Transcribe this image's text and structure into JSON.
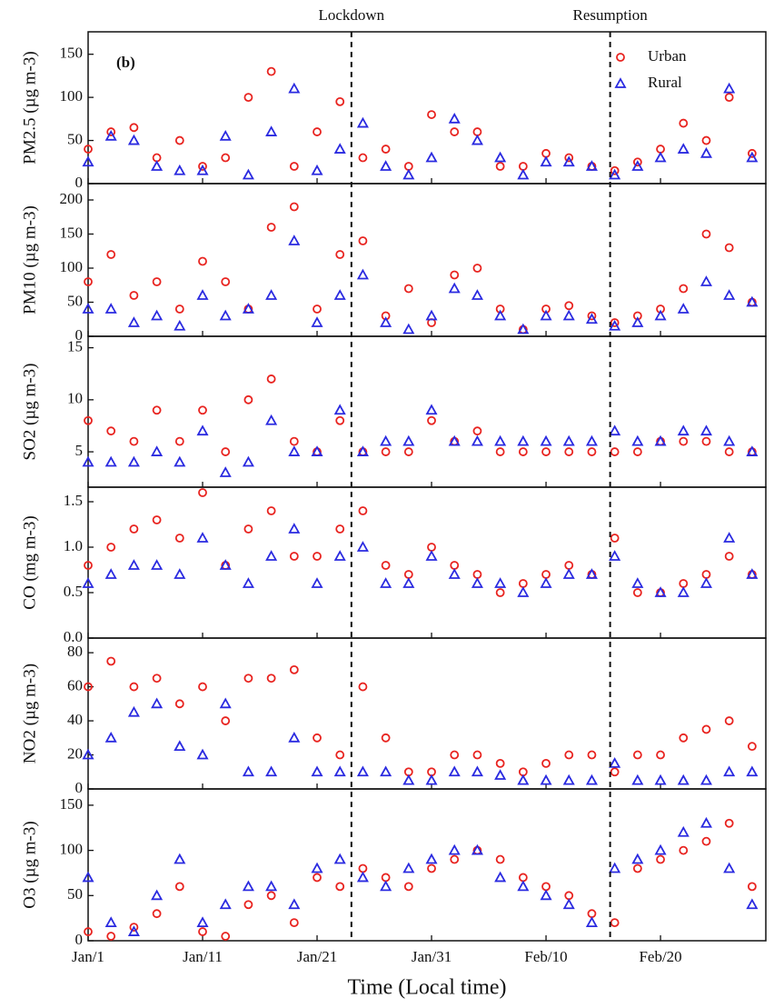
{
  "events": [
    {
      "label": "Lockdown",
      "x": 24
    },
    {
      "label": "Resumption",
      "x": 46.6
    }
  ],
  "chart_data": [
    {
      "type": "scatter",
      "ylabel": "PM2.5 (µg m-3)",
      "annotation": "(b)",
      "legend": "upper right",
      "x": [
        1,
        3,
        5,
        7,
        9,
        11,
        13,
        15,
        17,
        19,
        21,
        23,
        25,
        27,
        29,
        31,
        33,
        35,
        37,
        39,
        41,
        43,
        45,
        47,
        49,
        51,
        53,
        55,
        57,
        59
      ],
      "xlim": [
        1,
        60.2
      ],
      "ylim": [
        0,
        176
      ],
      "yticks": [
        0,
        50,
        100,
        150
      ],
      "series": [
        {
          "name": "Urban",
          "color": "#e8231f",
          "values": [
            40,
            60,
            65,
            30,
            50,
            20,
            30,
            100,
            130,
            20,
            60,
            95,
            30,
            40,
            20,
            80,
            60,
            60,
            20,
            20,
            35,
            30,
            20,
            15,
            25,
            40,
            70,
            50,
            100,
            35
          ]
        },
        {
          "name": "Rural",
          "color": "#2a2ae0",
          "values": [
            25,
            55,
            50,
            20,
            15,
            15,
            55,
            10,
            60,
            110,
            15,
            40,
            70,
            20,
            10,
            30,
            75,
            50,
            30,
            10,
            25,
            25,
            20,
            10,
            20,
            30,
            40,
            35,
            110,
            30
          ]
        }
      ]
    },
    {
      "type": "scatter",
      "ylabel": "PM10 (µg m-3)",
      "x": [
        1,
        3,
        5,
        7,
        9,
        11,
        13,
        15,
        17,
        19,
        21,
        23,
        25,
        27,
        29,
        31,
        33,
        35,
        37,
        39,
        41,
        43,
        45,
        47,
        49,
        51,
        53,
        55,
        57,
        59
      ],
      "xlim": [
        1,
        60.2
      ],
      "ylim": [
        0,
        224
      ],
      "yticks": [
        0,
        50,
        100,
        150,
        200
      ],
      "series": [
        {
          "color": "#e8231f",
          "values": [
            80,
            120,
            60,
            80,
            40,
            110,
            80,
            40,
            160,
            190,
            40,
            120,
            140,
            30,
            70,
            20,
            90,
            100,
            40,
            10,
            40,
            45,
            30,
            20,
            30,
            40,
            70,
            150,
            130,
            50
          ]
        },
        {
          "color": "#2a2ae0",
          "values": [
            40,
            40,
            20,
            30,
            15,
            60,
            30,
            40,
            60,
            140,
            20,
            60,
            90,
            20,
            10,
            30,
            70,
            60,
            30,
            10,
            30,
            30,
            25,
            15,
            20,
            30,
            40,
            80,
            60,
            50
          ]
        }
      ]
    },
    {
      "type": "scatter",
      "ylabel": "SO2 (µg m-3)",
      "x": [
        1,
        3,
        5,
        7,
        9,
        11,
        13,
        15,
        17,
        19,
        21,
        23,
        25,
        27,
        29,
        31,
        33,
        35,
        37,
        39,
        41,
        43,
        45,
        47,
        49,
        51,
        53,
        55,
        57,
        59
      ],
      "xlim": [
        1,
        60.2
      ],
      "ylim": [
        1.6,
        16.1
      ],
      "yticks": [
        5,
        10,
        15
      ],
      "series": [
        {
          "color": "#e8231f",
          "values": [
            8,
            7,
            6,
            9,
            6,
            9,
            5,
            10,
            12,
            6,
            5,
            8,
            5,
            5,
            5,
            8,
            6,
            7,
            5,
            5,
            5,
            5,
            5,
            5,
            5,
            6,
            6,
            6,
            5,
            5
          ]
        },
        {
          "color": "#2a2ae0",
          "values": [
            4,
            4,
            4,
            5,
            4,
            7,
            3,
            4,
            8,
            5,
            5,
            9,
            5,
            6,
            6,
            9,
            6,
            6,
            6,
            6,
            6,
            6,
            6,
            7,
            6,
            6,
            7,
            7,
            6,
            5
          ]
        }
      ]
    },
    {
      "type": "scatter",
      "ylabel": "CO (mg m-3)",
      "x": [
        1,
        3,
        5,
        7,
        9,
        11,
        13,
        15,
        17,
        19,
        21,
        23,
        25,
        27,
        29,
        31,
        33,
        35,
        37,
        39,
        41,
        43,
        45,
        47,
        49,
        51,
        53,
        55,
        57,
        59
      ],
      "xlim": [
        1,
        60.2
      ],
      "ylim": [
        0,
        1.66
      ],
      "yticks": [
        {
          "value": 0,
          "label": "0.0"
        },
        0.5,
        {
          "value": 1,
          "label": "1.0"
        },
        1.5
      ],
      "series": [
        {
          "color": "#e8231f",
          "values": [
            0.8,
            1.0,
            1.2,
            1.3,
            1.1,
            1.6,
            0.8,
            1.2,
            1.4,
            0.9,
            0.9,
            1.2,
            1.4,
            0.8,
            0.7,
            1.0,
            0.8,
            0.7,
            0.5,
            0.6,
            0.7,
            0.8,
            0.7,
            1.1,
            0.5,
            0.5,
            0.6,
            0.7,
            0.9,
            0.7
          ]
        },
        {
          "color": "#2a2ae0",
          "values": [
            0.6,
            0.7,
            0.8,
            0.8,
            0.7,
            1.1,
            0.8,
            0.6,
            0.9,
            1.2,
            0.6,
            0.9,
            1.0,
            0.6,
            0.6,
            0.9,
            0.7,
            0.6,
            0.6,
            0.5,
            0.6,
            0.7,
            0.7,
            0.9,
            0.6,
            0.5,
            0.5,
            0.6,
            1.1,
            0.7
          ]
        }
      ]
    },
    {
      "type": "scatter",
      "ylabel": "NO2 (µg m-3)",
      "x": [
        1,
        3,
        5,
        7,
        9,
        11,
        13,
        15,
        17,
        19,
        21,
        23,
        25,
        27,
        29,
        31,
        33,
        35,
        37,
        39,
        41,
        43,
        45,
        47,
        49,
        51,
        53,
        55,
        57,
        59
      ],
      "xlim": [
        1,
        60.2
      ],
      "ylim": [
        0,
        88.6
      ],
      "yticks": [
        0,
        20,
        40,
        60,
        80
      ],
      "series": [
        {
          "color": "#e8231f",
          "values": [
            60,
            75,
            60,
            65,
            50,
            60,
            40,
            65,
            65,
            70,
            30,
            20,
            60,
            30,
            10,
            10,
            20,
            20,
            15,
            10,
            15,
            20,
            20,
            10,
            20,
            20,
            30,
            35,
            40,
            25
          ]
        },
        {
          "color": "#2a2ae0",
          "values": [
            20,
            30,
            45,
            50,
            25,
            20,
            50,
            10,
            10,
            30,
            10,
            10,
            10,
            10,
            5,
            5,
            10,
            10,
            8,
            5,
            5,
            5,
            5,
            15,
            5,
            5,
            5,
            5,
            10,
            10
          ]
        }
      ]
    },
    {
      "type": "scatter",
      "ylabel": "O3 (µg m-3)",
      "xlabel": "Time (Local time)",
      "x": [
        1,
        3,
        5,
        7,
        9,
        11,
        13,
        15,
        17,
        19,
        21,
        23,
        25,
        27,
        29,
        31,
        33,
        35,
        37,
        39,
        41,
        43,
        45,
        47,
        49,
        51,
        53,
        55,
        57,
        59
      ],
      "xlim": [
        1,
        60.2
      ],
      "ylim": [
        0,
        168
      ],
      "yticks": [
        0,
        50,
        100,
        150
      ],
      "xticks": [
        {
          "value": 1,
          "label": "Jan/1"
        },
        {
          "value": 11,
          "label": "Jan/11"
        },
        {
          "value": 21,
          "label": "Jan/21"
        },
        {
          "value": 31,
          "label": "Jan/31"
        },
        {
          "value": 41,
          "label": "Feb/10"
        },
        {
          "value": 51,
          "label": "Feb/20"
        }
      ],
      "series": [
        {
          "color": "#e8231f",
          "values": [
            10,
            5,
            15,
            30,
            60,
            10,
            5,
            40,
            50,
            20,
            70,
            60,
            80,
            70,
            60,
            80,
            90,
            100,
            90,
            70,
            60,
            50,
            30,
            20,
            80,
            90,
            100,
            110,
            130,
            60
          ]
        },
        {
          "color": "#2a2ae0",
          "values": [
            70,
            20,
            10,
            50,
            90,
            20,
            40,
            60,
            60,
            40,
            80,
            90,
            70,
            60,
            80,
            90,
            100,
            100,
            70,
            60,
            50,
            40,
            20,
            80,
            90,
            100,
            120,
            130,
            80,
            40
          ]
        }
      ]
    }
  ]
}
